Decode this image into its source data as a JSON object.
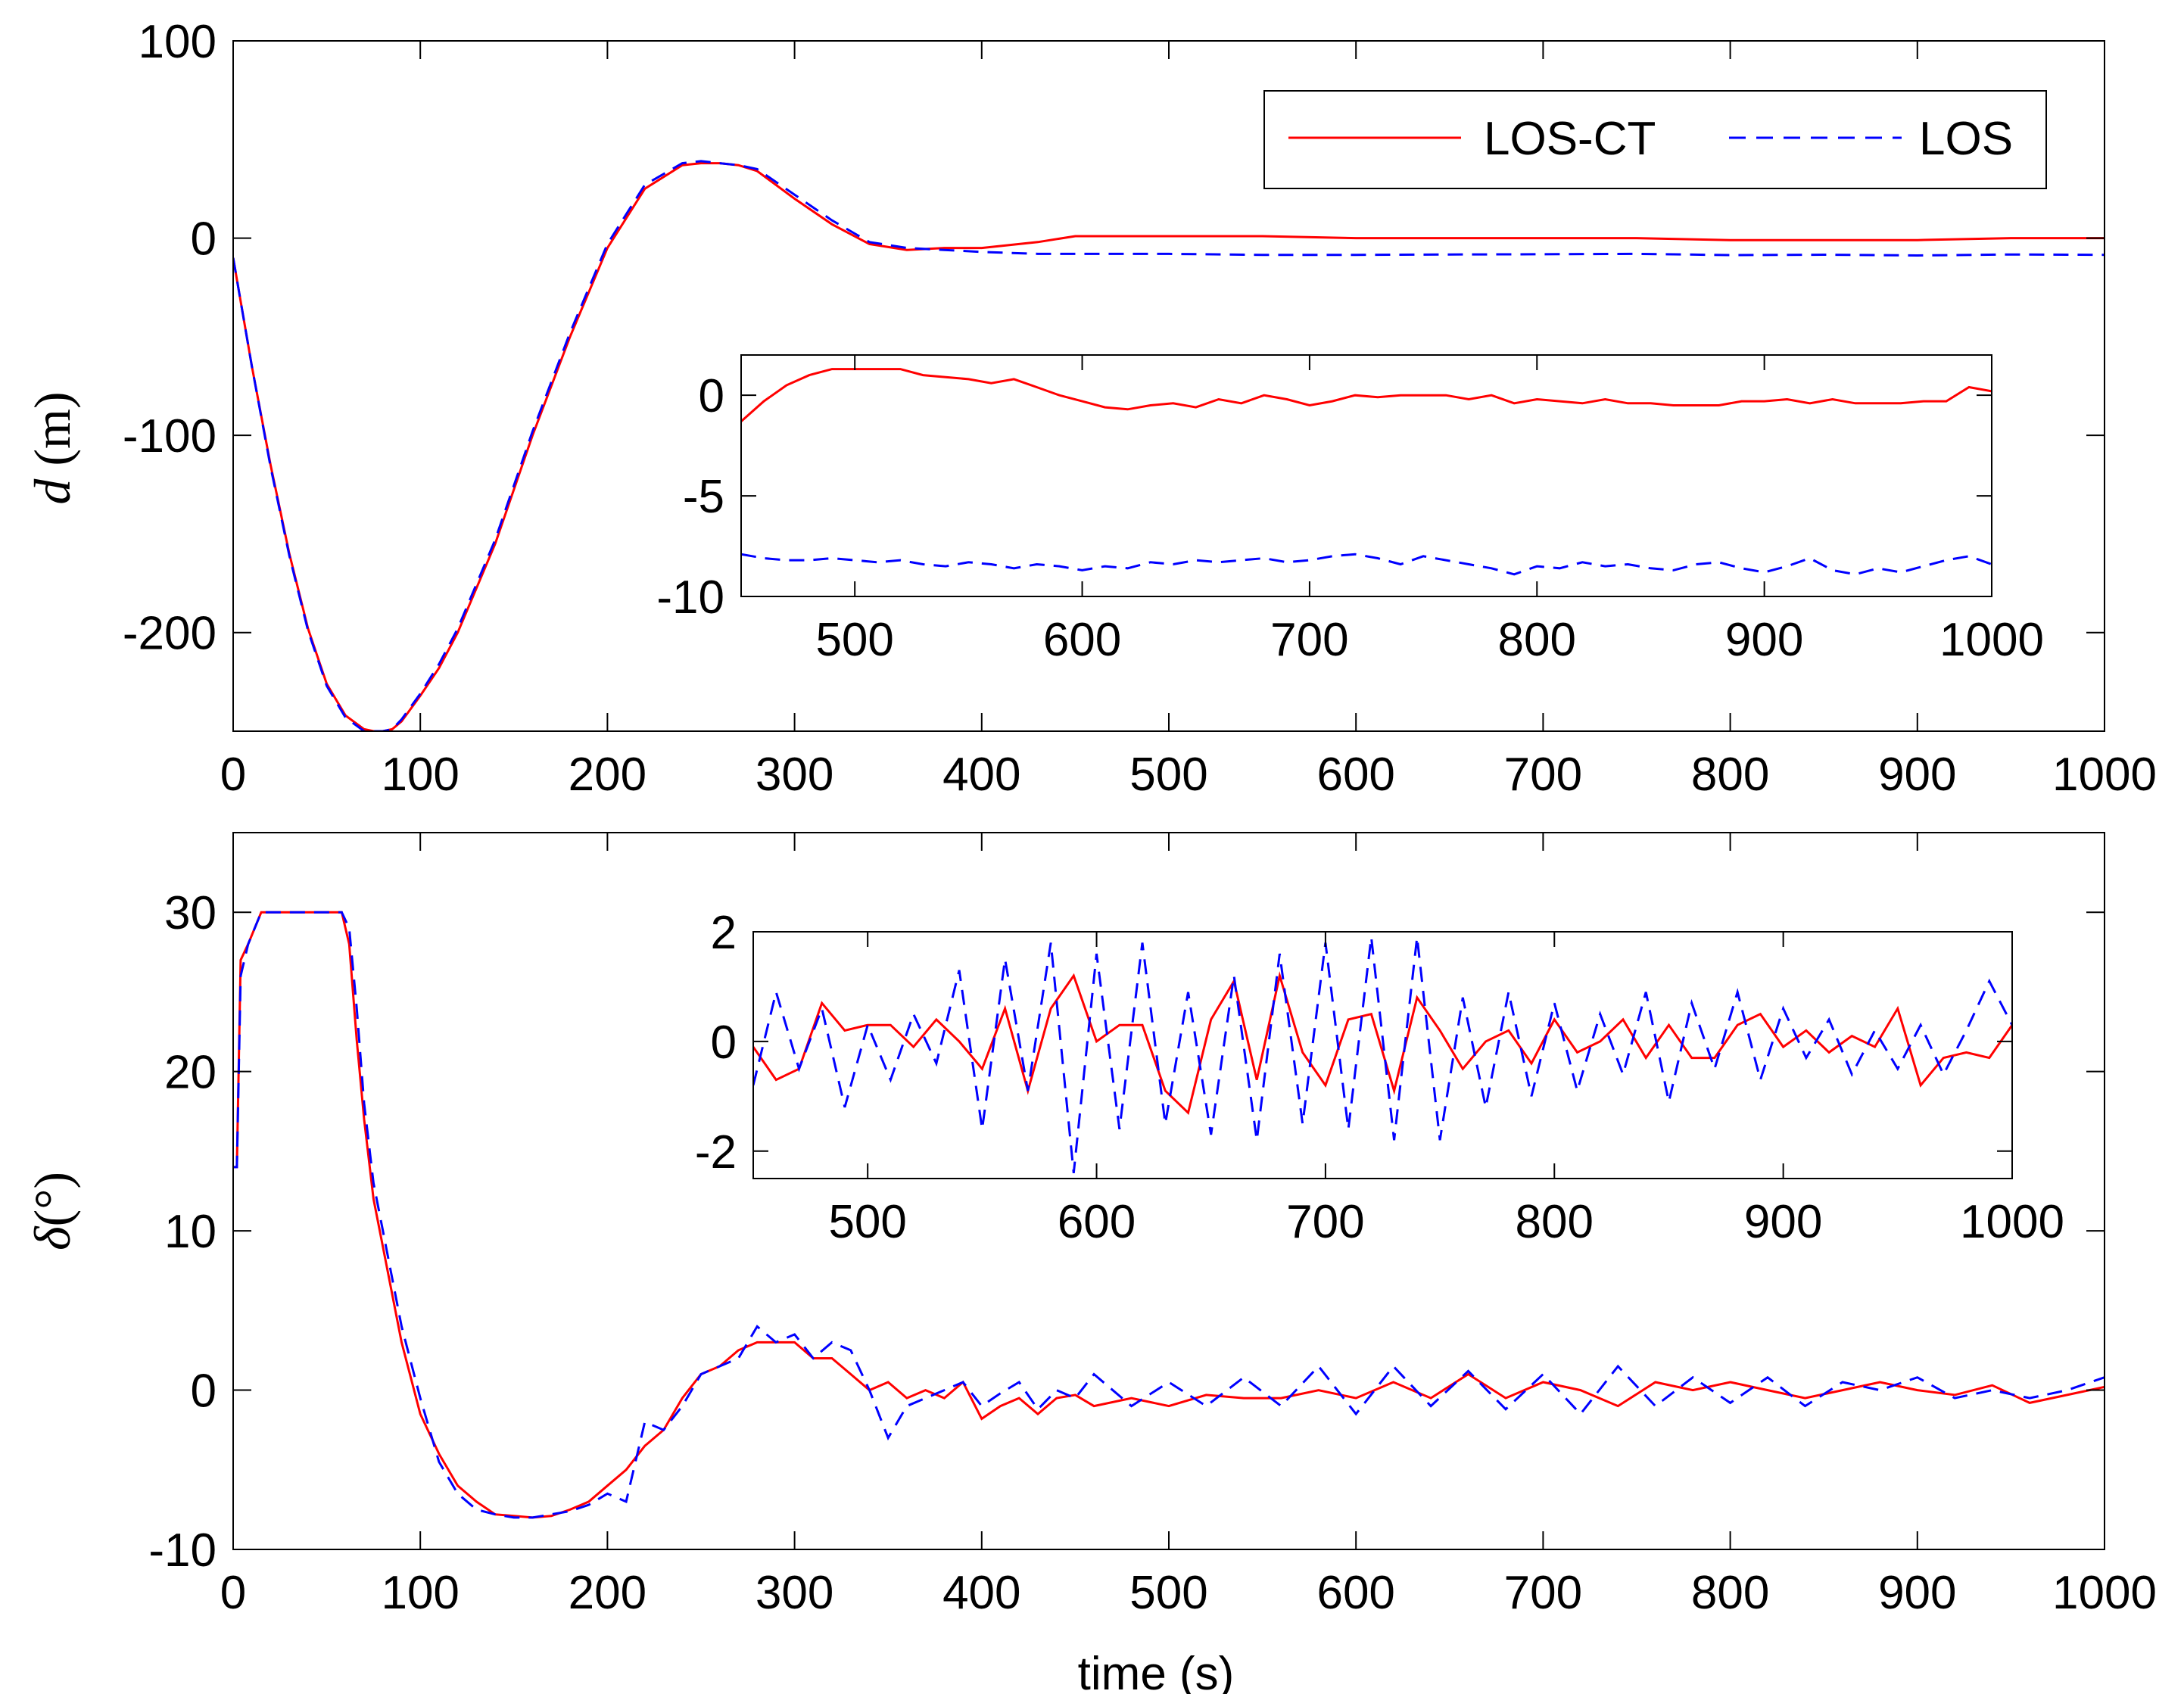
{
  "legend": [
    {
      "name": "LOS-CT",
      "color": "#ff0000",
      "dash": "solid"
    },
    {
      "name": "LOS",
      "color": "#0000ff",
      "dash": "dashed"
    }
  ],
  "chart_data": [
    {
      "id": "top",
      "type": "line",
      "title": "",
      "ylabel_italic": "d",
      "ylabel_rest": " (m)",
      "xlabel": "",
      "xlim": [
        0,
        1000
      ],
      "ylim": [
        -250,
        100
      ],
      "xticks": [
        0,
        100,
        200,
        300,
        400,
        500,
        600,
        700,
        800,
        900,
        1000
      ],
      "yticks": [
        100,
        0,
        -100,
        -200
      ],
      "series": [
        {
          "name": "LOS-CT",
          "color": "#ff0000",
          "dash": "solid",
          "x": [
            0,
            10,
            20,
            30,
            40,
            50,
            60,
            70,
            75,
            80,
            85,
            90,
            100,
            110,
            120,
            140,
            160,
            180,
            200,
            220,
            240,
            250,
            260,
            270,
            280,
            300,
            320,
            340,
            360,
            380,
            400,
            430,
            450,
            470,
            500,
            550,
            600,
            650,
            700,
            750,
            800,
            850,
            900,
            950,
            1000
          ],
          "y": [
            -10,
            -65,
            -115,
            -160,
            -198,
            -226,
            -242,
            -249,
            -250,
            -250,
            -249,
            -245,
            -232,
            -218,
            -200,
            -155,
            -100,
            -50,
            -5,
            25,
            37,
            38,
            38,
            37,
            34,
            20,
            7,
            -3,
            -6,
            -5,
            -5,
            -2,
            1,
            1,
            1,
            1,
            0,
            0,
            0,
            0,
            -1,
            -1,
            -1,
            0,
            0
          ]
        },
        {
          "name": "LOS",
          "color": "#0000ff",
          "dash": "dashed",
          "x": [
            0,
            10,
            20,
            30,
            40,
            50,
            60,
            70,
            75,
            80,
            85,
            90,
            100,
            110,
            120,
            140,
            160,
            180,
            200,
            220,
            240,
            250,
            260,
            270,
            280,
            300,
            320,
            340,
            360,
            380,
            400,
            430,
            450,
            470,
            500,
            550,
            600,
            650,
            700,
            750,
            800,
            850,
            900,
            950,
            1000
          ],
          "y": [
            -10,
            -65,
            -116,
            -161,
            -199,
            -227,
            -243,
            -250,
            -250,
            -250,
            -249,
            -244,
            -231,
            -216,
            -198,
            -153,
            -98,
            -48,
            -3,
            27,
            38,
            39,
            38,
            37,
            35,
            22,
            9,
            -2,
            -5,
            -6,
            -7,
            -8,
            -8,
            -8,
            -8,
            -8.5,
            -8.5,
            -8.3,
            -8.2,
            -8,
            -8.6,
            -8.4,
            -8.8,
            -8.3,
            -8.5
          ]
        }
      ]
    },
    {
      "id": "top-inset",
      "type": "line",
      "xlim": [
        450,
        1000
      ],
      "ylim": [
        -10,
        2
      ],
      "xticks": [
        500,
        600,
        700,
        800,
        900,
        1000
      ],
      "yticks": [
        0,
        -5,
        -10
      ],
      "series": [
        {
          "name": "LOS-CT",
          "color": "#ff0000",
          "dash": "solid",
          "x": [
            450,
            460,
            470,
            480,
            490,
            500,
            510,
            520,
            530,
            540,
            550,
            560,
            570,
            580,
            590,
            600,
            610,
            620,
            630,
            640,
            650,
            660,
            670,
            680,
            690,
            700,
            710,
            720,
            730,
            740,
            750,
            760,
            770,
            780,
            790,
            800,
            810,
            820,
            830,
            840,
            850,
            860,
            870,
            880,
            890,
            900,
            910,
            920,
            930,
            940,
            950,
            960,
            970,
            980,
            990,
            1000
          ],
          "y": [
            -1.3,
            -0.3,
            0.5,
            1.0,
            1.3,
            1.3,
            1.3,
            1.3,
            1.0,
            0.9,
            0.8,
            0.6,
            0.8,
            0.4,
            0,
            -0.3,
            -0.6,
            -0.7,
            -0.5,
            -0.4,
            -0.6,
            -0.2,
            -0.4,
            0,
            -0.2,
            -0.5,
            -0.3,
            0,
            -0.1,
            0,
            0,
            0,
            -0.2,
            0,
            -0.4,
            -0.2,
            -0.3,
            -0.4,
            -0.2,
            -0.4,
            -0.4,
            -0.5,
            -0.5,
            -0.5,
            -0.3,
            -0.3,
            -0.2,
            -0.4,
            -0.2,
            -0.4,
            -0.4,
            -0.4,
            -0.3,
            -0.3,
            0.4,
            0.2
          ]
        },
        {
          "name": "LOS",
          "color": "#0000ff",
          "dash": "dashed",
          "x": [
            450,
            460,
            470,
            480,
            490,
            500,
            510,
            520,
            530,
            540,
            550,
            560,
            570,
            580,
            590,
            600,
            610,
            620,
            630,
            640,
            650,
            660,
            670,
            680,
            690,
            700,
            710,
            720,
            730,
            740,
            750,
            760,
            770,
            780,
            790,
            800,
            810,
            820,
            830,
            840,
            850,
            860,
            870,
            880,
            890,
            900,
            910,
            920,
            930,
            940,
            950,
            960,
            970,
            980,
            990,
            1000
          ],
          "y": [
            -7.9,
            -8.1,
            -8.2,
            -8.2,
            -8.1,
            -8.2,
            -8.3,
            -8.2,
            -8.4,
            -8.5,
            -8.3,
            -8.4,
            -8.6,
            -8.4,
            -8.5,
            -8.7,
            -8.5,
            -8.6,
            -8.3,
            -8.4,
            -8.2,
            -8.3,
            -8.2,
            -8.1,
            -8.3,
            -8.2,
            -8.0,
            -7.9,
            -8.1,
            -8.4,
            -8.0,
            -8.2,
            -8.4,
            -8.6,
            -8.9,
            -8.5,
            -8.6,
            -8.3,
            -8.5,
            -8.4,
            -8.6,
            -8.7,
            -8.4,
            -8.3,
            -8.6,
            -8.8,
            -8.5,
            -8.1,
            -8.7,
            -8.9,
            -8.6,
            -8.8,
            -8.5,
            -8.2,
            -8.0,
            -8.4
          ]
        }
      ]
    },
    {
      "id": "bottom",
      "type": "line",
      "title": "",
      "ylabel_italic": "δ",
      "ylabel_rest": "(°)",
      "xlabel": "time (s)",
      "xlim": [
        0,
        1000
      ],
      "ylim": [
        -10,
        35
      ],
      "xticks": [
        0,
        100,
        200,
        300,
        400,
        500,
        600,
        700,
        800,
        900,
        1000
      ],
      "yticks": [
        30,
        20,
        10,
        0,
        -10
      ],
      "series": [
        {
          "name": "LOS-CT",
          "color": "#ff0000",
          "dash": "solid",
          "x": [
            0,
            2,
            4,
            8,
            15,
            30,
            50,
            58,
            62,
            66,
            70,
            75,
            80,
            90,
            100,
            110,
            120,
            130,
            140,
            150,
            160,
            170,
            180,
            190,
            200,
            210,
            220,
            230,
            240,
            250,
            260,
            270,
            280,
            290,
            300,
            310,
            320,
            330,
            340,
            350,
            360,
            370,
            380,
            390,
            400,
            410,
            420,
            430,
            440,
            450,
            460,
            480,
            500,
            520,
            540,
            560,
            580,
            600,
            620,
            640,
            660,
            680,
            700,
            720,
            740,
            760,
            780,
            800,
            820,
            840,
            860,
            880,
            900,
            920,
            940,
            960,
            980,
            1000
          ],
          "y": [
            14,
            14,
            27,
            28,
            30,
            30,
            30,
            30,
            28,
            22,
            17,
            12,
            9,
            3,
            -1.5,
            -4,
            -6,
            -7,
            -7.8,
            -7.9,
            -8,
            -7.9,
            -7.5,
            -7,
            -6,
            -5,
            -3.5,
            -2.5,
            -0.5,
            1,
            1.5,
            2.5,
            3,
            3,
            3,
            2,
            2,
            1,
            0,
            0.5,
            -0.5,
            0,
            -0.5,
            0.5,
            -1.8,
            -1,
            -0.5,
            -1.5,
            -0.5,
            -0.3,
            -1,
            -0.5,
            -1,
            -0.3,
            -0.5,
            -0.5,
            0,
            -0.5,
            0.5,
            -0.5,
            1,
            -0.5,
            0.5,
            0,
            -1,
            0.5,
            0,
            0.5,
            0,
            -0.5,
            0,
            0.5,
            0,
            -0.3,
            0.3,
            -0.8,
            -0.3,
            0.2
          ]
        },
        {
          "name": "LOS",
          "color": "#0000ff",
          "dash": "dashed",
          "x": [
            0,
            2,
            4,
            8,
            15,
            30,
            50,
            58,
            62,
            66,
            70,
            75,
            80,
            90,
            100,
            110,
            120,
            130,
            140,
            150,
            160,
            170,
            180,
            190,
            200,
            210,
            220,
            230,
            240,
            250,
            260,
            270,
            280,
            290,
            300,
            310,
            320,
            330,
            340,
            350,
            360,
            370,
            380,
            390,
            400,
            410,
            420,
            430,
            440,
            450,
            460,
            480,
            500,
            520,
            540,
            560,
            580,
            600,
            620,
            640,
            660,
            680,
            700,
            720,
            740,
            760,
            780,
            800,
            820,
            840,
            860,
            880,
            900,
            920,
            940,
            960,
            980,
            1000
          ],
          "y": [
            14,
            14,
            26,
            28,
            30,
            30,
            30,
            30,
            29,
            24,
            18,
            13,
            10,
            4,
            -0.5,
            -4.5,
            -6.5,
            -7.5,
            -7.8,
            -8,
            -8,
            -7.8,
            -7.6,
            -7.2,
            -6.5,
            -7,
            -2,
            -2.5,
            -1,
            1,
            1.5,
            2,
            4,
            3,
            3.5,
            2,
            3,
            2.5,
            0,
            -3,
            -1,
            -0.5,
            0,
            0.5,
            -1,
            -0.2,
            0.5,
            -1.2,
            0,
            -0.5,
            1,
            -1,
            0.5,
            -1,
            0.8,
            -1,
            1.5,
            -1.5,
            1.5,
            -1,
            1.2,
            -1.2,
            1,
            -1.5,
            1.5,
            -1,
            0.8,
            -0.8,
            0.8,
            -1,
            0.5,
            0,
            0.8,
            -0.5,
            0,
            -0.5,
            0,
            0.8
          ]
        }
      ]
    },
    {
      "id": "bottom-inset",
      "type": "line",
      "xlim": [
        450,
        1000
      ],
      "ylim": [
        -2.5,
        2
      ],
      "xticks": [
        500,
        600,
        700,
        800,
        900,
        1000
      ],
      "yticks": [
        2,
        0,
        -2
      ],
      "series": [
        {
          "name": "LOS-CT",
          "color": "#ff0000",
          "dash": "solid",
          "x": [
            450,
            460,
            470,
            480,
            490,
            500,
            510,
            520,
            530,
            540,
            550,
            560,
            570,
            580,
            590,
            600,
            610,
            620,
            630,
            640,
            650,
            660,
            670,
            680,
            690,
            700,
            710,
            720,
            730,
            740,
            750,
            760,
            770,
            780,
            790,
            800,
            810,
            820,
            830,
            840,
            850,
            860,
            870,
            880,
            890,
            900,
            910,
            920,
            930,
            940,
            950,
            960,
            970,
            980,
            990,
            1000
          ],
          "y": [
            -0.1,
            -0.7,
            -0.5,
            0.7,
            0.2,
            0.3,
            0.3,
            -0.1,
            0.4,
            0,
            -0.5,
            0.6,
            -0.9,
            0.6,
            1.2,
            0,
            0.3,
            0.3,
            -0.9,
            -1.3,
            0.4,
            1.1,
            -0.7,
            1.2,
            -0.2,
            -0.8,
            0.4,
            0.5,
            -0.9,
            0.8,
            0.2,
            -0.5,
            0,
            0.2,
            -0.4,
            0.4,
            -0.2,
            0,
            0.4,
            -0.3,
            0.3,
            -0.3,
            -0.3,
            0.3,
            0.5,
            -0.1,
            0.2,
            -0.2,
            0.1,
            -0.1,
            0.6,
            -0.8,
            -0.3,
            -0.2,
            -0.3,
            0.3
          ]
        },
        {
          "name": "LOS",
          "color": "#0000ff",
          "dash": "dashed",
          "x": [
            450,
            460,
            470,
            480,
            490,
            500,
            510,
            520,
            530,
            540,
            550,
            560,
            570,
            580,
            590,
            600,
            610,
            620,
            630,
            640,
            650,
            660,
            670,
            680,
            690,
            700,
            710,
            720,
            730,
            740,
            750,
            760,
            770,
            780,
            790,
            800,
            810,
            820,
            830,
            840,
            850,
            860,
            870,
            880,
            890,
            900,
            910,
            920,
            930,
            940,
            950,
            960,
            970,
            980,
            990,
            1000
          ],
          "y": [
            -0.8,
            0.9,
            -0.5,
            0.6,
            -1.2,
            0.3,
            -0.7,
            0.5,
            -0.4,
            1.3,
            -1.6,
            1.5,
            -0.9,
            1.8,
            -2.4,
            1.6,
            -1.6,
            1.8,
            -1.5,
            0.9,
            -1.7,
            1.2,
            -1.8,
            1.6,
            -1.5,
            1.8,
            -1.6,
            1.9,
            -1.8,
            1.9,
            -1.8,
            0.8,
            -1.2,
            0.9,
            -1.0,
            0.7,
            -0.9,
            0.5,
            -0.6,
            0.9,
            -1.1,
            0.7,
            -0.5,
            0.9,
            -0.7,
            0.6,
            -0.3,
            0.4,
            -0.6,
            0.2,
            -0.5,
            0.3,
            -0.6,
            0.2,
            1.1,
            0.3
          ]
        }
      ]
    }
  ]
}
